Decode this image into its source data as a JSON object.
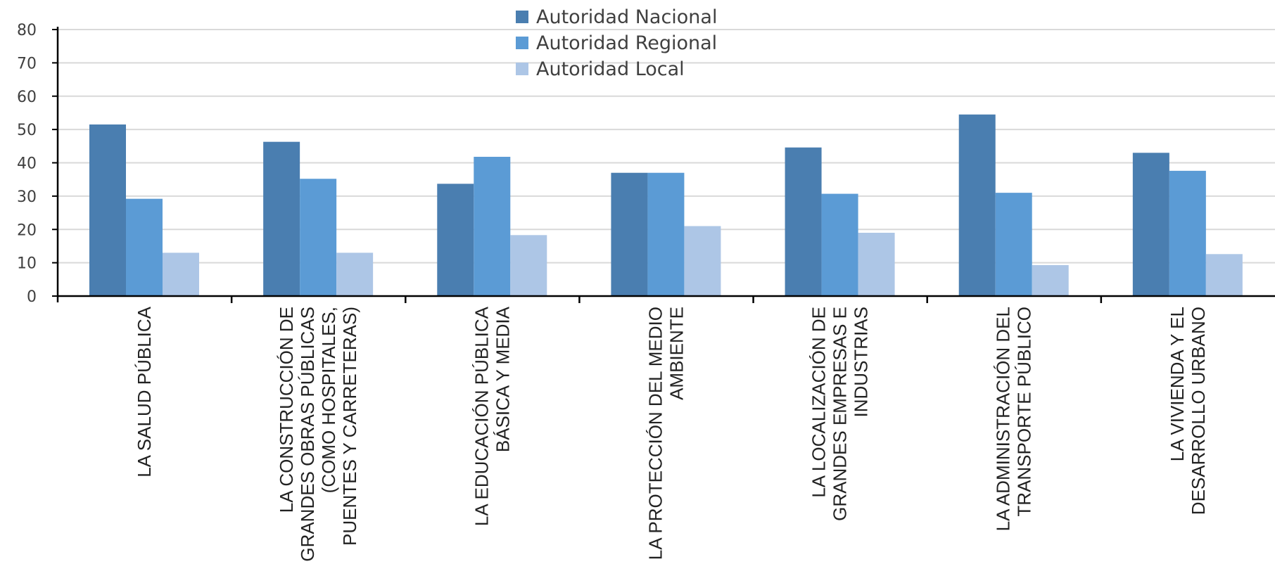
{
  "chart_data": {
    "type": "bar",
    "title": "",
    "xlabel": "",
    "ylabel": "",
    "ylim": [
      0,
      80
    ],
    "yticks": [
      0,
      10,
      20,
      30,
      40,
      50,
      60,
      70,
      80
    ],
    "grid": true,
    "legend_position": "top-center",
    "categories": [
      [
        "LA SALUD PÚBLICA"
      ],
      [
        "LA CONSTRUCCIÓN DE",
        "GRANDES OBRAS PÚBLICAS",
        "(COMO HOSPITALES,",
        "PUENTES Y CARRETERAS)"
      ],
      [
        "LA EDUCACIÓN PÚBLICA",
        "BÁSICA Y MEDIA"
      ],
      [
        "LA PROTECCIÓN DEL MEDIO",
        "AMBIENTE"
      ],
      [
        "LA LOCALIZACIÓN DE",
        "GRANDES EMPRESAS E",
        "INDUSTRIAS"
      ],
      [
        "LA ADMINISTRACIÓN DEL",
        "TRANSPORTE PÚBLICO"
      ],
      [
        "LA VIVIENDA Y EL",
        "DESARROLLO URBANO"
      ]
    ],
    "series": [
      {
        "name": "Autoridad Nacional",
        "color": "#4a7eb0",
        "values": [
          51.5,
          46.3,
          33.7,
          37.0,
          44.6,
          54.5,
          43.0
        ]
      },
      {
        "name": "Autoridad Regional",
        "color": "#5b9bd5",
        "values": [
          29.2,
          35.2,
          41.8,
          37.0,
          30.7,
          31.0,
          37.6
        ]
      },
      {
        "name": "Autoridad Local",
        "color": "#adc6e6",
        "values": [
          13.0,
          13.0,
          18.3,
          21.0,
          19.0,
          9.3,
          12.6
        ]
      }
    ]
  }
}
